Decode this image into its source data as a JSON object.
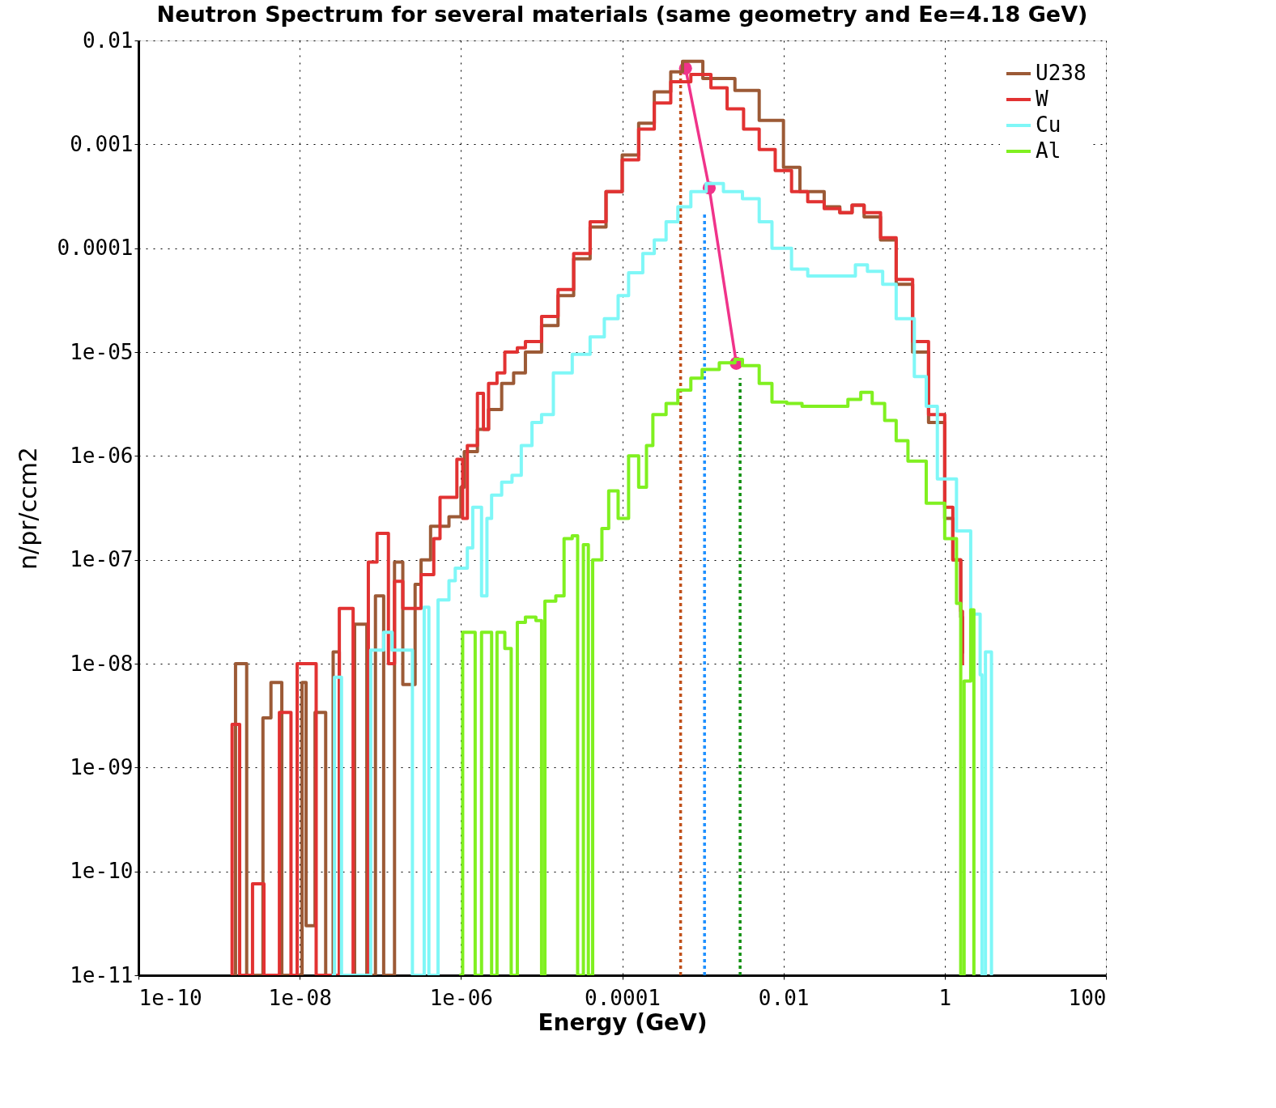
{
  "chart_data": {
    "type": "step",
    "title": "Neutron Spectrum for several materials (same geometry and Ee=4.18 GeV)",
    "xlabel": "Energy (GeV)",
    "ylabel": "n/pr/ccm2",
    "log": "xy",
    "grid": true,
    "legend": "top right",
    "xlim": [
      1e-10,
      100
    ],
    "ylim": [
      1e-11,
      0.01
    ],
    "xticks": [
      {
        "value": 1e-10,
        "label": "1e-10"
      },
      {
        "value": 1e-08,
        "label": "1e-08"
      },
      {
        "value": 1e-06,
        "label": "1e-06"
      },
      {
        "value": 0.0001,
        "label": "0.0001"
      },
      {
        "value": 0.01,
        "label": "0.01"
      },
      {
        "value": 1,
        "label": "1"
      },
      {
        "value": 100,
        "label": "100"
      }
    ],
    "yticks": [
      {
        "value": 1e-11,
        "label": "1e-11"
      },
      {
        "value": 1e-10,
        "label": "1e-10"
      },
      {
        "value": 1e-09,
        "label": "1e-09"
      },
      {
        "value": 1e-08,
        "label": "1e-08"
      },
      {
        "value": 1e-07,
        "label": "1e-07"
      },
      {
        "value": 1e-06,
        "label": "1e-06"
      },
      {
        "value": 1e-05,
        "label": "1e-05"
      },
      {
        "value": 0.0001,
        "label": "0.0001"
      },
      {
        "value": 0.001,
        "label": "0.001"
      },
      {
        "value": 0.01,
        "label": "0.01"
      }
    ],
    "series": [
      {
        "name": "U238",
        "color": "#9c5a36",
        "x": [
          1.4e-09,
          1.6e-09,
          2.2e-09,
          3.5e-09,
          4.4e-09,
          6e-09,
          1.07e-08,
          1.2e-08,
          1.55e-08,
          2.1e-08,
          2.6e-08,
          3.1e-08,
          4.8e-08,
          6.8e-08,
          8.7e-08,
          1.1e-07,
          1.5e-07,
          1.9e-07,
          2.7e-07,
          3.2e-07,
          4.2e-07,
          7.1e-07,
          1e-06,
          1.1e-06,
          1.6e-06,
          2.2e-06,
          3.2e-06,
          4.5e-06,
          6.3e-06,
          1e-05,
          1.6e-05,
          2.5e-05,
          4e-05,
          6.3e-05,
          0.0001,
          0.00016,
          0.00025,
          0.0004,
          0.00056,
          0.001,
          0.0025,
          0.005,
          0.01,
          0.016,
          0.032,
          0.05,
          0.071,
          0.1,
          0.16,
          0.25,
          0.4,
          0.63,
          1,
          1.26,
          1.58,
          1.66,
          1.74
        ],
        "values": [
          1e-11,
          1e-08,
          1e-11,
          3e-09,
          6.6e-09,
          1e-11,
          6.6e-09,
          3e-11,
          3.4e-09,
          1e-11,
          1.3e-08,
          1e-11,
          2.4e-08,
          1e-11,
          4.5e-08,
          1e-11,
          9.5e-08,
          6.3e-09,
          5.8e-08,
          1e-07,
          2.1e-07,
          2.6e-07,
          5e-07,
          1.1e-06,
          1.8e-06,
          2.8e-06,
          5e-06,
          6.3e-06,
          1e-05,
          1.8e-05,
          3.5e-05,
          7.9e-05,
          0.00016,
          0.00035,
          0.00079,
          0.0016,
          0.0032,
          0.005,
          0.0063,
          0.0043,
          0.0033,
          0.0017,
          0.0006,
          0.00035,
          0.00025,
          0.00022,
          0.00026,
          0.0002,
          0.00012,
          4.5e-05,
          1e-05,
          2.1e-06,
          2.5e-07,
          1e-07,
          2.8e-08,
          1.3e-08,
          1.3e-08
        ]
      },
      {
        "name": "W",
        "color": "#e23232",
        "x": [
          1.4e-09,
          1.45e-09,
          1.8e-09,
          2.6e-09,
          3.6e-09,
          5.6e-09,
          7.8e-09,
          9.3e-09,
          1.6e-08,
          3.1e-08,
          4.6e-08,
          7.1e-08,
          9.1e-08,
          1.26e-07,
          1.5e-07,
          1.9e-07,
          3.2e-07,
          4.6e-07,
          5.5e-07,
          8.9e-07,
          1.05e-06,
          1.2e-06,
          1.6e-06,
          1.9e-06,
          2.2e-06,
          2.8e-06,
          3.5e-06,
          5e-06,
          6.3e-06,
          1e-05,
          1.6e-05,
          2.5e-05,
          4e-05,
          6.3e-05,
          0.0001,
          0.00016,
          0.00025,
          0.0004,
          0.00071,
          0.00126,
          0.002,
          0.0032,
          0.005,
          0.0079,
          0.0126,
          0.02,
          0.032,
          0.05,
          0.071,
          0.1,
          0.16,
          0.25,
          0.4,
          0.63,
          1,
          1.26,
          1.58,
          1.66,
          1.74
        ],
        "values": [
          1e-11,
          2.6e-09,
          1e-11,
          7.6e-11,
          1e-11,
          3.4e-09,
          1e-11,
          1e-08,
          1e-11,
          3.4e-08,
          1e-11,
          9.5e-08,
          1.8e-07,
          1e-08,
          6.2e-08,
          3.4e-08,
          7.2e-08,
          1.6e-07,
          4e-07,
          9.3e-07,
          2.5e-07,
          1.26e-06,
          4e-06,
          1.8e-06,
          5e-06,
          6.3e-06,
          1e-05,
          1.1e-05,
          1.26e-05,
          2.2e-05,
          4e-05,
          8.9e-05,
          0.00018,
          0.00035,
          0.00071,
          0.0014,
          0.0025,
          0.004,
          0.0047,
          0.0035,
          0.0022,
          0.0014,
          0.00089,
          0.00056,
          0.00035,
          0.00028,
          0.00024,
          0.00022,
          0.00026,
          0.00022,
          0.000126,
          5e-05,
          1.26e-05,
          2.5e-06,
          3.2e-07,
          1e-07,
          3.2e-08,
          1e-08,
          1e-08
        ]
      },
      {
        "name": "Cu",
        "color": "#7ff7f7",
        "x": [
          2.5e-08,
          2.7e-08,
          3.3e-08,
          7.6e-08,
          1.1e-07,
          1.4e-07,
          2.5e-07,
          3.5e-07,
          4e-07,
          5.2e-07,
          7.1e-07,
          8.5e-07,
          1.2e-06,
          1.4e-06,
          1.8e-06,
          2.1e-06,
          2.4e-06,
          3.2e-06,
          4.3e-06,
          5.6e-06,
          7.6e-06,
          1e-05,
          1.4e-05,
          2.4e-05,
          4e-05,
          6e-05,
          8.9e-05,
          0.00012,
          0.00018,
          0.00025,
          0.00035,
          0.00049,
          0.00071,
          0.0011,
          0.0018,
          0.0031,
          0.005,
          0.0072,
          0.0126,
          0.02,
          0.039,
          0.078,
          0.11,
          0.17,
          0.25,
          0.42,
          0.59,
          0.81,
          1.4,
          2.1,
          2.75,
          2.9,
          3.2,
          3.8
        ],
        "values": [
          1e-11,
          7.4e-09,
          1e-11,
          1.35e-08,
          2e-08,
          1.35e-08,
          1e-11,
          3.5e-08,
          1e-11,
          4.1e-08,
          6.3e-08,
          8.3e-08,
          1.3e-07,
          3.2e-07,
          4.5e-08,
          2.5e-07,
          4.2e-07,
          5.6e-07,
          6.5e-07,
          1.26e-06,
          2.1e-06,
          2.5e-06,
          6.3e-06,
          9.5e-06,
          1.4e-05,
          2.1e-05,
          3.5e-05,
          5.8e-05,
          8.9e-05,
          0.00012,
          0.00018,
          0.00025,
          0.00035,
          0.00042,
          0.00035,
          0.0003,
          0.00018,
          0.0001,
          6.3e-05,
          5.4e-05,
          5.4e-05,
          6.9e-05,
          6e-05,
          4.5e-05,
          2.1e-05,
          5.8e-06,
          3e-06,
          6e-07,
          1.9e-07,
          3e-08,
          7.8e-09,
          1e-11,
          1.3e-08,
          1e-11
        ]
      },
      {
        "name": "Al",
        "color": "#80f020",
        "x": [
          9.5e-07,
          1.05e-06,
          1.4e-06,
          1.5e-06,
          1.8e-06,
          2.4e-06,
          2.8e-06,
          3.5e-06,
          4.2e-06,
          5e-06,
          6.3e-06,
          8.5e-06,
          1e-05,
          1.1e-05,
          1.5e-05,
          1.9e-05,
          2.4e-05,
          2.8e-05,
          3.3e-05,
          3.8e-05,
          4.3e-05,
          5.6e-05,
          6.8e-05,
          8.9e-05,
          0.00012,
          0.00016,
          0.0002,
          0.00024,
          0.00035,
          0.00049,
          0.00071,
          0.00098,
          0.0016,
          0.0025,
          0.0031,
          0.005,
          0.0072,
          0.011,
          0.017,
          0.039,
          0.063,
          0.091,
          0.126,
          0.18,
          0.25,
          0.35,
          0.59,
          1,
          1.4,
          1.58,
          1.74,
          2.1,
          2.3
        ],
        "values": [
          1e-11,
          2e-08,
          2e-08,
          1e-11,
          2e-08,
          1e-11,
          2e-08,
          1.4e-08,
          1e-11,
          2.5e-08,
          2.8e-08,
          2.6e-08,
          1e-11,
          4e-08,
          4.5e-08,
          1.6e-07,
          1.7e-07,
          1e-11,
          1.4e-07,
          1e-11,
          1e-07,
          2e-07,
          4.6e-07,
          2.5e-07,
          1e-06,
          5e-07,
          1.26e-06,
          2.5e-06,
          3.2e-06,
          4.3e-06,
          5.6e-06,
          6.8e-06,
          7.9e-06,
          8.5e-06,
          7.4e-06,
          5e-06,
          3.3e-06,
          3.2e-06,
          3e-06,
          3e-06,
          3.5e-06,
          4.1e-06,
          3.2e-06,
          2.2e-06,
          1.4e-06,
          8.9e-07,
          3.5e-07,
          1.6e-07,
          3.8e-08,
          1e-11,
          6.8e-09,
          3.3e-08,
          1e-11
        ]
      },
      {
        "type": "line",
        "color": "#f0338a",
        "marker": "circle",
        "x": [
          0.00061,
          0.0012,
          0.0026
        ],
        "values": [
          0.0054,
          0.00038,
          7.8e-06
        ]
      },
      {
        "type": "line",
        "color": "#c0501a",
        "line_style": "dotted",
        "x": [
          0.00053,
          0.00053
        ],
        "values": [
          1e-11,
          0.005
        ]
      },
      {
        "type": "line",
        "color": "#1e90ff",
        "line_style": "dotted",
        "x": [
          0.00105,
          0.00105
        ],
        "values": [
          1e-11,
          0.00022
        ]
      },
      {
        "type": "line",
        "color": "#109010",
        "line_style": "dotted",
        "x": [
          0.0029,
          0.0029
        ],
        "values": [
          1e-11,
          5.6e-06
        ]
      }
    ]
  }
}
